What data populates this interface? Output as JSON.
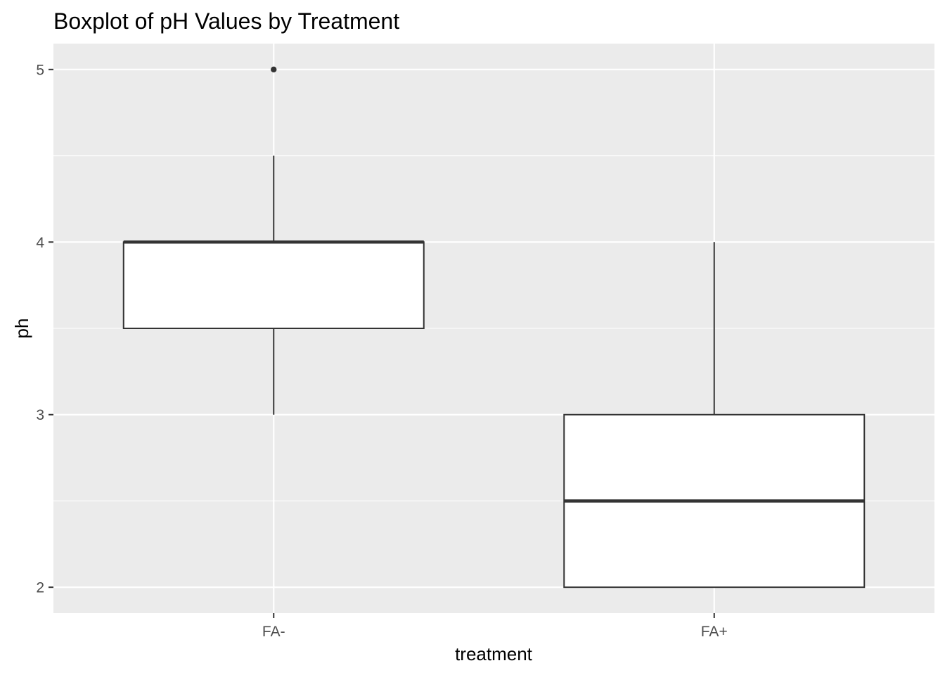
{
  "chart_data": {
    "type": "boxplot",
    "title": "Boxplot of pH Values by Treatment",
    "xlabel": "treatment",
    "ylabel": "ph",
    "categories": [
      "FA-",
      "FA+"
    ],
    "boxes": [
      {
        "category": "FA-",
        "whisker_low": 3,
        "q1": 3.5,
        "median": 4,
        "q3": 4,
        "whisker_high": 4.5,
        "outliers": [
          5
        ]
      },
      {
        "category": "FA+",
        "whisker_low": 2,
        "q1": 2,
        "median": 2.5,
        "q3": 3,
        "whisker_high": 4,
        "outliers": []
      }
    ],
    "ylim": [
      1.85,
      5.15
    ],
    "yticks": [
      2,
      3,
      4,
      5
    ],
    "ytick_labels": [
      "2",
      "3",
      "4",
      "5"
    ],
    "grid": true,
    "legend": "none",
    "colors": {
      "panel_background": "#ebebeb",
      "grid": "#ffffff",
      "box_fill": "#ffffff",
      "box_line": "#333333",
      "tick_text": "#4d4d4d"
    }
  }
}
